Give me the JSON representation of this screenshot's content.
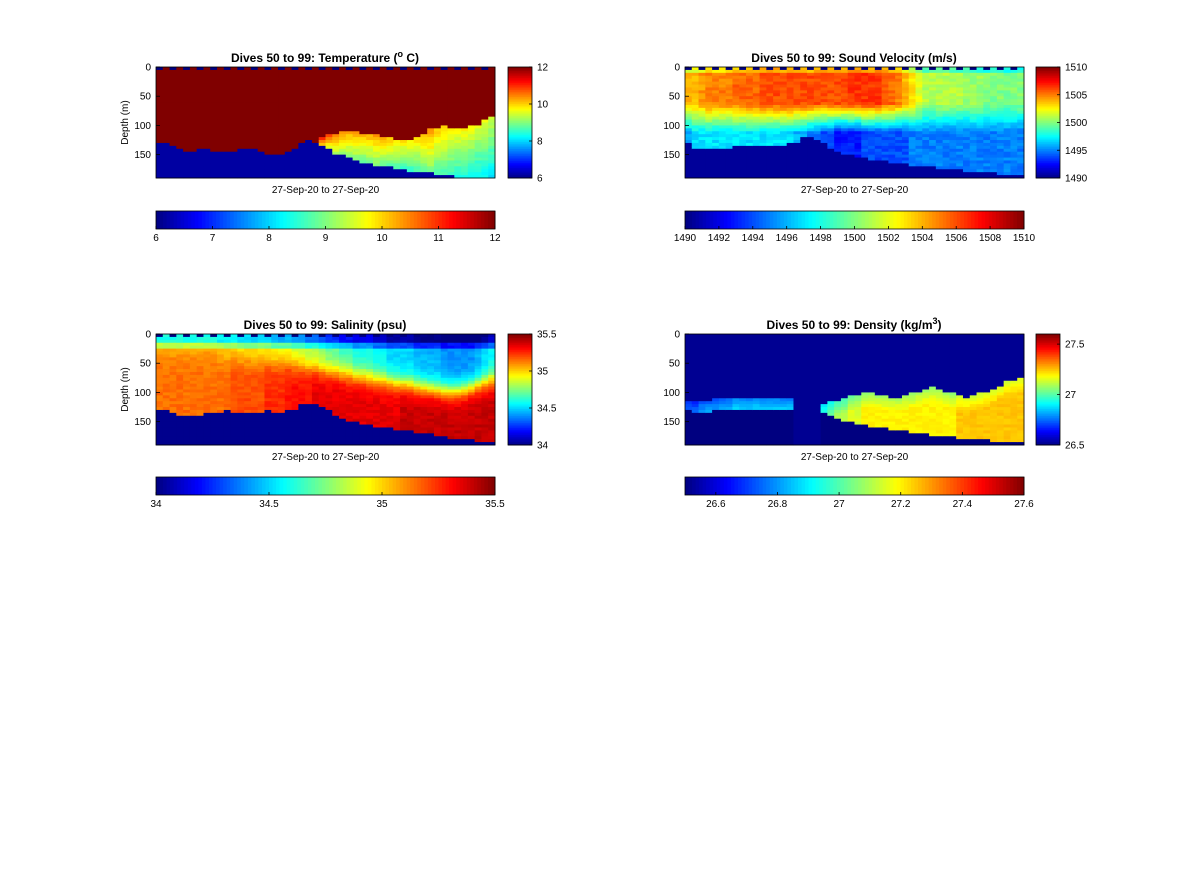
{
  "chart_data": [
    {
      "type": "heatmap",
      "title": "Dives 50 to 99: Temperature (",
      "title_sup": "o",
      "title_end": " C)",
      "ylabel": "Depth (m)",
      "xlabel": "27-Sep-20 to 27-Sep-20",
      "ylim": [
        0,
        190
      ],
      "yticks": [
        "0",
        "50",
        "100",
        "150"
      ],
      "ytick_values": [
        0,
        50,
        100,
        150
      ],
      "clim": [
        6,
        12
      ],
      "side_colorbar_ticks": [
        "6",
        "8",
        "10",
        "12"
      ],
      "side_colorbar_values": [
        6,
        8,
        10,
        12
      ],
      "bottom_colorbar_ticks": [
        "6",
        "7",
        "8",
        "9",
        "10",
        "11",
        "12"
      ],
      "bottom_colorbar_values": [
        6,
        7,
        8,
        9,
        10,
        11,
        12
      ],
      "colormap": "jet",
      "n_dives": 50,
      "bottom_depth_profile": [
        128,
        130,
        134,
        140,
        145,
        142,
        140,
        138,
        141,
        144,
        145,
        145,
        140,
        138,
        140,
        142,
        146,
        148,
        150,
        145,
        140,
        130,
        122,
        126,
        134,
        140,
        146,
        150,
        155,
        158,
        162,
        165,
        166,
        168,
        170,
        172,
        174,
        176,
        178,
        179,
        180,
        181,
        183,
        184,
        186,
        188,
        188,
        187,
        186,
        186
      ],
      "bottom_profile_value": 6.2,
      "background_value": 12,
      "column_value_profile": [
        11.3,
        11.3,
        11.2,
        11.2,
        11.3,
        11.3,
        11.4,
        11.4,
        11.4,
        11.3,
        11.3,
        11.3,
        11.4,
        11.4,
        11.5,
        11.5,
        11.5,
        11.4,
        11.4,
        11.4,
        11.4,
        11.4,
        11.3,
        11.2,
        11.0,
        10.8,
        10.6,
        10.4,
        10.3,
        10.3,
        10.2,
        10.2,
        10.3,
        10.2,
        10.1,
        10.0,
        9.9,
        9.9,
        10.0,
        10.2,
        10.3,
        10.1,
        10.0,
        9.9,
        9.8,
        9.8,
        9.7,
        9.6,
        9.6,
        9.5
      ],
      "gradient_top_profile": [
        150,
        150,
        148,
        146,
        146,
        146,
        146,
        146,
        146,
        146,
        146,
        146,
        146,
        146,
        146,
        146,
        146,
        146,
        146,
        146,
        146,
        146,
        146,
        146,
        120,
        115,
        112,
        110,
        108,
        110,
        112,
        114,
        115,
        118,
        120,
        122,
        124,
        122,
        118,
        112,
        105,
        102,
        100,
        102,
        104,
        104,
        100,
        96,
        90,
        84
      ],
      "top_mask": "sawtooth"
    },
    {
      "type": "heatmap",
      "title": "Dives 50 to 99: Sound Velocity (m/s)",
      "ylabel": "",
      "xlabel": "27-Sep-20 to 27-Sep-20",
      "ylim": [
        0,
        190
      ],
      "yticks": [
        "0",
        "50",
        "100",
        "150"
      ],
      "ytick_values": [
        0,
        50,
        100,
        150
      ],
      "clim": [
        1490,
        1510
      ],
      "side_colorbar_ticks": [
        "1490",
        "1495",
        "1500",
        "1505",
        "1510"
      ],
      "side_colorbar_values": [
        1490,
        1495,
        1500,
        1505,
        1510
      ],
      "bottom_colorbar_ticks": [
        "1490",
        "1492",
        "1494",
        "1496",
        "1498",
        "1500",
        "1502",
        "1504",
        "1506",
        "1508",
        "1510"
      ],
      "bottom_colorbar_values": [
        1490,
        1492,
        1494,
        1496,
        1498,
        1500,
        1502,
        1504,
        1506,
        1508,
        1510
      ],
      "colormap": "jet",
      "n_dives": 50,
      "bottom_depth_profile": [
        130,
        138,
        140,
        138,
        137,
        136,
        136,
        135,
        134,
        133,
        132,
        132,
        133,
        134,
        132,
        130,
        126,
        120,
        118,
        124,
        130,
        136,
        142,
        146,
        150,
        152,
        154,
        156,
        158,
        160,
        162,
        163,
        164,
        166,
        167,
        168,
        170,
        171,
        172,
        174,
        175,
        176,
        177,
        178,
        179,
        180,
        181,
        182,
        183,
        184
      ],
      "bottom_profile_value": 1490.5,
      "background_value": 1491,
      "surface_value_profile": [
        1504,
        1504,
        1504.5,
        1505,
        1505,
        1505,
        1505,
        1505.5,
        1505.5,
        1505.5,
        1505.5,
        1506,
        1506,
        1506,
        1506,
        1506,
        1506,
        1506,
        1506,
        1506,
        1506,
        1506,
        1506,
        1506,
        1506.5,
        1506.5,
        1506.5,
        1506.5,
        1506.5,
        1506,
        1505.5,
        1505,
        1504,
        1503,
        1502,
        1501,
        1501,
        1501,
        1501,
        1501,
        1501,
        1500.5,
        1500.5,
        1500.5,
        1500,
        1500,
        1500,
        1500,
        1500,
        1500
      ],
      "deep_value_profile": [
        1496,
        1497,
        1497,
        1497,
        1497,
        1497,
        1497,
        1497,
        1497,
        1497,
        1497,
        1497,
        1497,
        1497,
        1497,
        1497,
        1496,
        1496,
        1495,
        1495,
        1494,
        1494,
        1493,
        1493,
        1493,
        1493,
        1494,
        1494,
        1494,
        1494,
        1494,
        1494,
        1494,
        1495,
        1495,
        1495,
        1495,
        1495,
        1495,
        1495,
        1495,
        1495,
        1495,
        1495,
        1495,
        1495,
        1495,
        1495,
        1495,
        1495
      ],
      "top_mask": "sawtooth"
    },
    {
      "type": "heatmap",
      "title": "Dives 50 to 99: Salinity (psu)",
      "ylabel": "Depth (m)",
      "xlabel": "27-Sep-20 to 27-Sep-20",
      "ylim": [
        0,
        190
      ],
      "yticks": [
        "0",
        "50",
        "100",
        "150"
      ],
      "ytick_values": [
        0,
        50,
        100,
        150
      ],
      "clim": [
        34,
        35.5
      ],
      "side_colorbar_ticks": [
        "34",
        "34.5",
        "35",
        "35.5"
      ],
      "side_colorbar_values": [
        34,
        34.5,
        35,
        35.5
      ],
      "bottom_colorbar_ticks": [
        "34",
        "34.5",
        "35",
        "35.5"
      ],
      "bottom_colorbar_values": [
        34,
        34.5,
        35,
        35.5
      ],
      "colormap": "jet",
      "n_dives": 50,
      "bottom_depth_profile": [
        128,
        130,
        134,
        138,
        140,
        138,
        136,
        134,
        132,
        132,
        130,
        132,
        134,
        133,
        132,
        131,
        130,
        132,
        134,
        130,
        126,
        120,
        116,
        118,
        124,
        130,
        136,
        142,
        146,
        150,
        152,
        154,
        156,
        158,
        160,
        162,
        164,
        165,
        166,
        168,
        170,
        172,
        174,
        176,
        177,
        178,
        180,
        181,
        182,
        182
      ],
      "bottom_profile_value": 34.02,
      "background_value": 34.05,
      "surface_value_profile": [
        35.05,
        35.05,
        35.05,
        35.05,
        35.05,
        35.05,
        35.05,
        35.05,
        35.05,
        35.0,
        35.0,
        35.0,
        34.95,
        34.95,
        34.95,
        34.95,
        34.95,
        34.9,
        34.9,
        34.9,
        34.85,
        34.85,
        34.8,
        34.8,
        34.75,
        34.7,
        34.7,
        34.65,
        34.65,
        34.6,
        34.6,
        34.6,
        34.55,
        34.55,
        34.5,
        34.5,
        34.5,
        34.5,
        34.45,
        34.45,
        34.45,
        34.45,
        34.4,
        34.4,
        34.4,
        34.4,
        34.4,
        34.45,
        34.5,
        34.55
      ],
      "deep_value_profile": [
        35.15,
        35.15,
        35.15,
        35.15,
        35.15,
        35.15,
        35.15,
        35.15,
        35.15,
        35.15,
        35.15,
        35.2,
        35.2,
        35.2,
        35.2,
        35.2,
        35.25,
        35.25,
        35.25,
        35.3,
        35.3,
        35.3,
        35.3,
        35.35,
        35.35,
        35.35,
        35.35,
        35.35,
        35.35,
        35.35,
        35.35,
        35.35,
        35.35,
        35.35,
        35.35,
        35.35,
        35.4,
        35.4,
        35.4,
        35.4,
        35.4,
        35.4,
        35.4,
        35.4,
        35.4,
        35.4,
        35.4,
        35.4,
        35.4,
        35.4
      ],
      "transition_depth_profile": [
        35,
        35,
        36,
        36,
        37,
        38,
        38,
        39,
        40,
        40,
        41,
        42,
        42,
        43,
        44,
        45,
        46,
        47,
        48,
        49,
        50,
        52,
        54,
        56,
        58,
        60,
        62,
        64,
        66,
        68,
        70,
        72,
        74,
        76,
        78,
        80,
        82,
        84,
        86,
        88,
        90,
        92,
        94,
        95,
        94,
        92,
        88,
        84,
        80,
        76
      ],
      "top_mask": "sawtooth"
    },
    {
      "type": "heatmap",
      "title": "Dives 50 to 99: Density (kg/m",
      "title_sup": "3",
      "title_end": ")",
      "ylabel": "",
      "xlabel": "27-Sep-20 to 27-Sep-20",
      "ylim": [
        0,
        190
      ],
      "yticks": [
        "0",
        "50",
        "100",
        "150"
      ],
      "ytick_values": [
        0,
        50,
        100,
        150
      ],
      "clim": [
        26.5,
        27.6
      ],
      "side_colorbar_ticks": [
        "26.5",
        "27",
        "27.5"
      ],
      "side_colorbar_values": [
        26.5,
        27,
        27.5
      ],
      "bottom_colorbar_ticks": [
        "26.6",
        "26.8",
        "27",
        "27.2",
        "27.4",
        "27.6"
      ],
      "bottom_colorbar_values": [
        26.6,
        26.8,
        27,
        27.2,
        27.4,
        27.6
      ],
      "colormap": "jet",
      "n_dives": 50,
      "bottom_depth_profile": [
        128,
        132,
        134,
        132,
        130,
        128,
        126,
        128,
        130,
        130,
        128,
        126,
        128,
        130,
        128,
        128,
        0,
        0,
        0,
        0,
        134,
        138,
        142,
        146,
        150,
        152,
        154,
        156,
        158,
        160,
        162,
        163,
        164,
        166,
        168,
        170,
        171,
        172,
        174,
        175,
        176,
        177,
        178,
        179,
        180,
        181,
        182,
        183,
        184,
        184
      ],
      "bottom_profile_value": 26.5,
      "background_value": 26.52,
      "upper_layer_profile": [
        112,
        114,
        114,
        112,
        110,
        108,
        106,
        108,
        110,
        110,
        108,
        108,
        110,
        110,
        110,
        110,
        0,
        0,
        0,
        0,
        118,
        115,
        112,
        108,
        105,
        102,
        100,
        100,
        102,
        104,
        106,
        106,
        104,
        100,
        96,
        92,
        90,
        92,
        96,
        100,
        104,
        106,
        104,
        100,
        96,
        92,
        86,
        80,
        76,
        72
      ],
      "layer_value_profile": [
        26.8,
        26.8,
        26.85,
        26.85,
        26.85,
        26.85,
        26.85,
        26.9,
        26.9,
        26.9,
        26.9,
        26.9,
        26.9,
        26.9,
        26.9,
        26.9,
        26.9,
        26.9,
        26.9,
        26.9,
        27.0,
        27.05,
        27.1,
        27.1,
        27.15,
        27.15,
        27.2,
        27.2,
        27.2,
        27.2,
        27.2,
        27.2,
        27.2,
        27.2,
        27.2,
        27.2,
        27.2,
        27.2,
        27.2,
        27.2,
        27.25,
        27.25,
        27.25,
        27.25,
        27.25,
        27.25,
        27.25,
        27.25,
        27.25,
        27.25
      ],
      "top_mask": "none"
    }
  ]
}
